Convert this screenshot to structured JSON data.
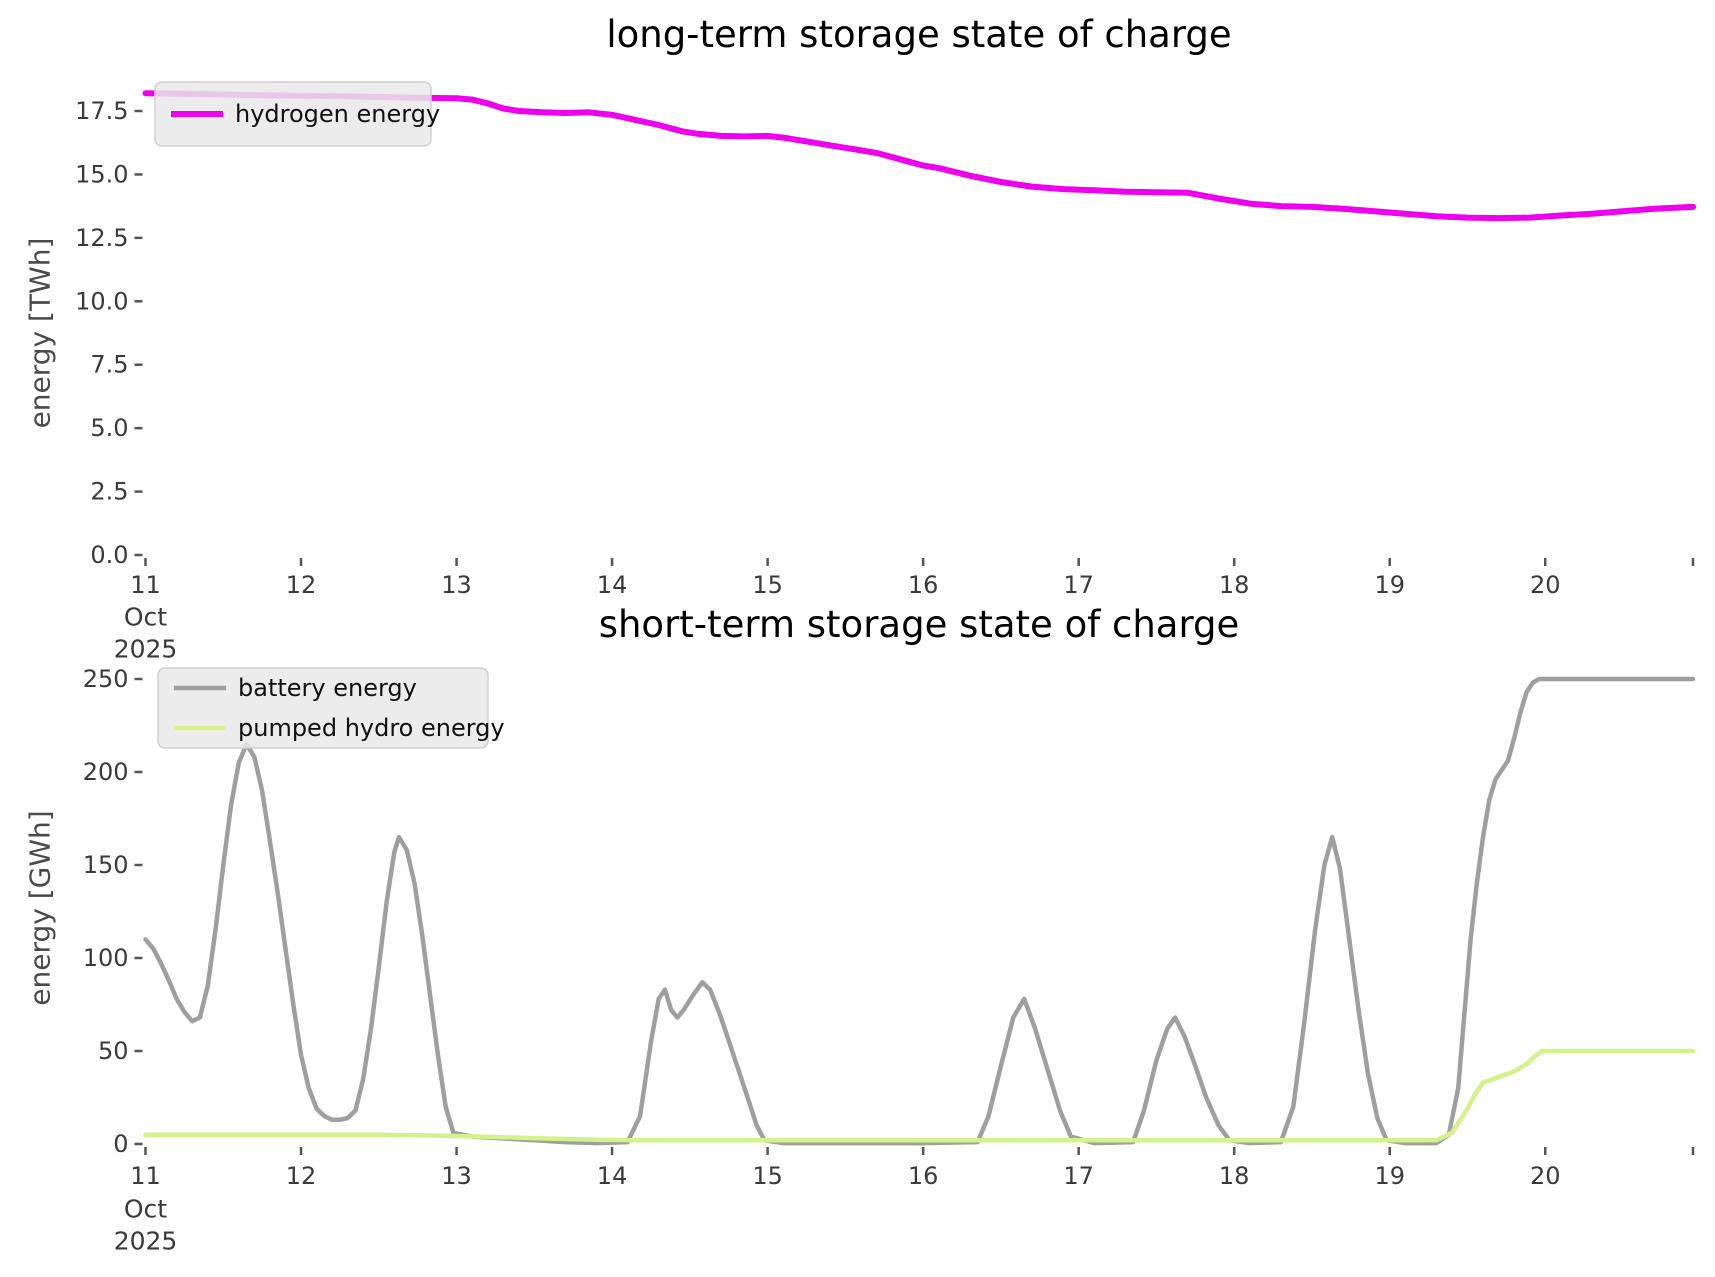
{
  "figure": {
    "background": "#ffffff",
    "text_color": "#3a3a3a",
    "tick_color": "#555555",
    "legend_bg": "#e9e9e9",
    "legend_border": "#d0d0d0"
  },
  "chart_data": [
    {
      "id": "long_term",
      "type": "line",
      "title": "long-term storage state of charge",
      "xlabel": "",
      "ylabel": "energy [TWh]",
      "x_unit": "day of month",
      "xlim": [
        11,
        20.95
      ],
      "ylim": [
        0,
        18.6
      ],
      "grid": false,
      "legend_position": "upper-left",
      "xticks": [
        11,
        12,
        13,
        14,
        15,
        16,
        17,
        18,
        19,
        20
      ],
      "xtick_labels": [
        "11",
        "12",
        "13",
        "14",
        "15",
        "16",
        "17",
        "18",
        "19",
        "20"
      ],
      "x_context_labels": [
        "Oct",
        "2025"
      ],
      "yticks": [
        0,
        2.5,
        5,
        7.5,
        10,
        12.5,
        15,
        17.5
      ],
      "ytick_labels": [
        "0.0",
        "2.5",
        "5.0",
        "7.5",
        "10.0",
        "12.5",
        "15.0",
        "17.5"
      ],
      "series": [
        {
          "name": "hydrogen energy",
          "color": "#ee00ee",
          "line_width": 6,
          "x": [
            11.0,
            11.25,
            11.5,
            11.75,
            12.0,
            12.25,
            12.5,
            12.75,
            13.0,
            13.1,
            13.2,
            13.3,
            13.4,
            13.55,
            13.7,
            13.85,
            14.0,
            14.15,
            14.3,
            14.45,
            14.55,
            14.7,
            14.85,
            15.0,
            15.1,
            15.25,
            15.4,
            15.55,
            15.7,
            15.85,
            16.0,
            16.1,
            16.3,
            16.5,
            16.7,
            16.9,
            17.1,
            17.3,
            17.5,
            17.7,
            17.9,
            18.1,
            18.3,
            18.5,
            18.7,
            18.9,
            19.1,
            19.3,
            19.5,
            19.7,
            19.9,
            20.1,
            20.3,
            20.5,
            20.7,
            20.95
          ],
          "values": [
            18.2,
            18.18,
            18.15,
            18.12,
            18.1,
            18.08,
            18.05,
            18.02,
            18.0,
            17.95,
            17.8,
            17.6,
            17.5,
            17.45,
            17.42,
            17.45,
            17.35,
            17.15,
            16.95,
            16.7,
            16.6,
            16.52,
            16.5,
            16.52,
            16.45,
            16.3,
            16.15,
            16.0,
            15.85,
            15.6,
            15.35,
            15.25,
            14.95,
            14.7,
            14.52,
            14.42,
            14.38,
            14.32,
            14.3,
            14.28,
            14.05,
            13.85,
            13.75,
            13.72,
            13.65,
            13.55,
            13.45,
            13.35,
            13.3,
            13.28,
            13.3,
            13.38,
            13.45,
            13.55,
            13.65,
            13.72
          ]
        }
      ]
    },
    {
      "id": "short_term",
      "type": "line",
      "title": "short-term storage state of charge",
      "xlabel": "",
      "ylabel": "energy [GWh]",
      "x_unit": "day of month",
      "xlim": [
        11,
        20.95
      ],
      "ylim": [
        0,
        255
      ],
      "grid": false,
      "legend_position": "upper-left",
      "xticks": [
        11,
        12,
        13,
        14,
        15,
        16,
        17,
        18,
        19,
        20
      ],
      "xtick_labels": [
        "11",
        "12",
        "13",
        "14",
        "15",
        "16",
        "17",
        "18",
        "19",
        "20"
      ],
      "x_context_labels": [
        "Oct",
        "2025"
      ],
      "yticks": [
        0,
        50,
        100,
        150,
        200,
        250
      ],
      "ytick_labels": [
        "0",
        "50",
        "100",
        "150",
        "200",
        "250"
      ],
      "series": [
        {
          "name": "battery energy",
          "color": "#9f9f9f",
          "line_width": 4.5,
          "x": [
            11.0,
            11.05,
            11.1,
            11.15,
            11.2,
            11.25,
            11.3,
            11.35,
            11.4,
            11.45,
            11.5,
            11.55,
            11.6,
            11.65,
            11.7,
            11.75,
            11.8,
            11.85,
            11.9,
            11.95,
            12.0,
            12.05,
            12.1,
            12.15,
            12.2,
            12.25,
            12.3,
            12.35,
            12.4,
            12.45,
            12.5,
            12.55,
            12.6,
            12.63,
            12.68,
            12.73,
            12.78,
            12.83,
            12.88,
            12.93,
            12.98,
            13.1,
            13.3,
            13.5,
            13.7,
            13.9,
            14.1,
            14.18,
            14.25,
            14.3,
            14.34,
            14.38,
            14.42,
            14.46,
            14.52,
            14.58,
            14.63,
            14.7,
            14.78,
            14.86,
            14.93,
            14.98,
            15.1,
            15.5,
            16.0,
            16.35,
            16.42,
            16.5,
            16.58,
            16.65,
            16.72,
            16.8,
            16.88,
            16.95,
            17.1,
            17.35,
            17.42,
            17.5,
            17.57,
            17.62,
            17.68,
            17.75,
            17.82,
            17.9,
            17.97,
            18.1,
            18.3,
            18.38,
            18.45,
            18.52,
            18.58,
            18.63,
            18.68,
            18.74,
            18.8,
            18.86,
            18.92,
            18.98,
            19.1,
            19.3,
            19.38,
            19.44,
            19.48,
            19.52,
            19.56,
            19.6,
            19.64,
            19.68,
            19.72,
            19.76,
            19.8,
            19.84,
            19.88,
            19.92,
            19.96,
            20.2,
            20.5,
            20.95
          ],
          "values": [
            110,
            105,
            97,
            88,
            78,
            71,
            66,
            68,
            85,
            115,
            150,
            182,
            205,
            215,
            208,
            190,
            163,
            135,
            105,
            75,
            48,
            30,
            19,
            15,
            13,
            13,
            14,
            18,
            35,
            62,
            95,
            130,
            157,
            165,
            158,
            140,
            112,
            80,
            48,
            20,
            6,
            4,
            3,
            2,
            1,
            0.5,
            1,
            15,
            55,
            78,
            83,
            72,
            68,
            72,
            80,
            87,
            83,
            68,
            48,
            28,
            10,
            2,
            0.5,
            0.5,
            0.5,
            1,
            15,
            42,
            68,
            78,
            62,
            40,
            18,
            4,
            0.5,
            1,
            18,
            45,
            62,
            68,
            58,
            42,
            25,
            10,
            2,
            0.5,
            1,
            20,
            65,
            115,
            150,
            165,
            148,
            110,
            72,
            38,
            14,
            2,
            0.5,
            0.5,
            5,
            30,
            70,
            110,
            140,
            165,
            185,
            196,
            201,
            206,
            218,
            232,
            243,
            248,
            250,
            250,
            250,
            250
          ]
        },
        {
          "name": "pumped hydro energy",
          "color": "#d3f28a",
          "line_width": 4.5,
          "x": [
            11.0,
            11.5,
            12.0,
            12.5,
            12.8,
            13.0,
            13.3,
            13.6,
            13.9,
            14.2,
            15.0,
            16.0,
            17.0,
            18.0,
            19.0,
            19.3,
            19.4,
            19.5,
            19.55,
            19.6,
            19.7,
            19.8,
            19.88,
            19.93,
            19.98,
            20.2,
            20.5,
            20.95
          ],
          "values": [
            5,
            5,
            5,
            5,
            4.6,
            4.3,
            3.6,
            2.9,
            2.3,
            2,
            2,
            2,
            2,
            2,
            2,
            2,
            6,
            19,
            27,
            33,
            36,
            39,
            43,
            47,
            50,
            50,
            50,
            50
          ]
        }
      ]
    }
  ]
}
